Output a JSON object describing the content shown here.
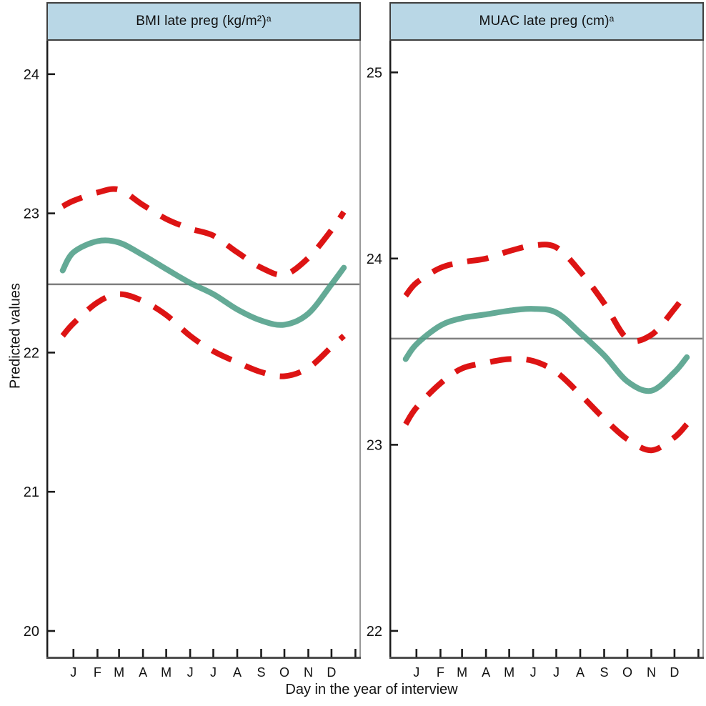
{
  "figure": {
    "ylabel": "Predicted values",
    "xlabel": "Day in the year of interview"
  },
  "colors": {
    "fit_line": "#4f9e87",
    "ci_line": "#dd1414",
    "reference_line": "#7f7f7f",
    "header_fill": "#b9d7e6",
    "header_border": "#3f3f3f",
    "axis_color": "#1a1a1a",
    "bottom_axis_color": "#4d4d4d",
    "panel_right_border": "#999999",
    "text_color": "#111111"
  },
  "chart_data": [
    {
      "type": "line",
      "panel": "left",
      "title": "BMI late preg (kg/m²)",
      "title_superscript": "a",
      "xlabel": "Day in the year of interview",
      "ylabel": "Predicted values",
      "x_unit": "day of year",
      "xlim": [
        -20,
        387
      ],
      "ylim": [
        19.8,
        24.24
      ],
      "y_ticks": [
        "24",
        "23",
        "22",
        "21",
        "20"
      ],
      "y_tick_values": [
        24,
        23,
        22,
        21,
        20
      ],
      "x_tick_labels": [
        "J",
        "F",
        "M",
        "A",
        "M",
        "J",
        "J",
        "A",
        "S",
        "O",
        "N",
        "D",
        ""
      ],
      "x_tick_days": [
        15,
        46,
        74,
        105,
        135,
        166,
        196,
        227,
        258,
        288,
        319,
        349,
        380
      ],
      "grid": false,
      "legend": "none",
      "reference_value": 22.49,
      "sample_days": [
        1,
        15,
        46,
        74,
        105,
        135,
        166,
        196,
        227,
        258,
        288,
        319,
        349,
        365
      ],
      "series": [
        {
          "name": "predicted-fit",
          "role": "fit",
          "style": "solid",
          "values": [
            22.59,
            22.72,
            22.8,
            22.79,
            22.7,
            22.6,
            22.5,
            22.42,
            22.31,
            22.23,
            22.2,
            22.28,
            22.49,
            22.61
          ]
        },
        {
          "name": "ci-upper",
          "role": "ci",
          "style": "dashed",
          "values": [
            23.05,
            23.09,
            23.15,
            23.17,
            23.06,
            22.96,
            22.89,
            22.84,
            22.72,
            22.61,
            22.56,
            22.68,
            22.88,
            23.01
          ]
        },
        {
          "name": "ci-lower",
          "role": "ci",
          "style": "dashed",
          "values": [
            22.12,
            22.21,
            22.36,
            22.42,
            22.37,
            22.27,
            22.12,
            22.01,
            21.93,
            21.86,
            21.83,
            21.89,
            22.04,
            22.12
          ]
        }
      ]
    },
    {
      "type": "line",
      "panel": "right",
      "title": "MUAC late preg (cm)",
      "title_superscript": "a",
      "xlabel": "Day in the year of interview",
      "ylabel": "Predicted values",
      "x_unit": "day of year",
      "xlim": [
        -20,
        387
      ],
      "ylim": [
        21.85,
        25.17
      ],
      "y_ticks": [
        "25",
        "24",
        "23",
        "22"
      ],
      "y_tick_values": [
        25,
        24,
        23,
        22
      ],
      "x_tick_labels": [
        "J",
        "F",
        "M",
        "A",
        "M",
        "J",
        "J",
        "A",
        "S",
        "O",
        "N",
        "D",
        ""
      ],
      "x_tick_days": [
        15,
        46,
        74,
        105,
        135,
        166,
        196,
        227,
        258,
        288,
        319,
        349,
        380
      ],
      "grid": false,
      "legend": "none",
      "reference_value": 23.57,
      "sample_days": [
        1,
        15,
        46,
        74,
        105,
        135,
        166,
        196,
        227,
        258,
        288,
        319,
        349,
        365
      ],
      "series": [
        {
          "name": "predicted-fit",
          "role": "fit",
          "style": "solid",
          "values": [
            23.46,
            23.54,
            23.64,
            23.68,
            23.7,
            23.72,
            23.73,
            23.71,
            23.6,
            23.48,
            23.34,
            23.29,
            23.39,
            23.47
          ]
        },
        {
          "name": "ci-upper",
          "role": "ci",
          "style": "dashed",
          "values": [
            23.8,
            23.87,
            23.95,
            23.98,
            24.0,
            24.04,
            24.07,
            24.06,
            23.93,
            23.76,
            23.57,
            23.59,
            23.73,
            23.82
          ]
        },
        {
          "name": "ci-lower",
          "role": "ci",
          "style": "dashed",
          "values": [
            23.11,
            23.2,
            23.33,
            23.41,
            23.44,
            23.46,
            23.45,
            23.39,
            23.27,
            23.14,
            23.03,
            22.97,
            23.04,
            23.11
          ]
        }
      ]
    }
  ]
}
